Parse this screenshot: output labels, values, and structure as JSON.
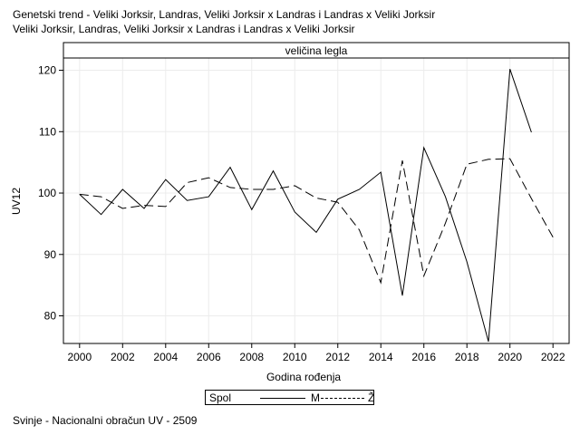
{
  "header": {
    "title_line1": "Genetski trend - Veliki Jorksir, Landras, Veliki Jorksir x Landras i Landras x Veliki Jorksir",
    "title_line2": "Veliki Jorksir, Landras, Veliki Jorksir x Landras i Landras x Veliki Jorksir"
  },
  "legend": {
    "title": "Spol",
    "items": [
      {
        "label": "M",
        "style": "solid"
      },
      {
        "label": "Ž",
        "style": "dashed"
      }
    ]
  },
  "footer": "Svinje - Nacionalni obračun UV - 2509",
  "chart_data": {
    "type": "line",
    "panel_label": "veličina legla",
    "xlabel": "Godina rođenja",
    "ylabel": "UV12",
    "xlim": [
      1999.25,
      2022.75
    ],
    "ylim": [
      75.5,
      122
    ],
    "x_ticks": [
      2000,
      2002,
      2004,
      2006,
      2008,
      2010,
      2012,
      2014,
      2016,
      2018,
      2020,
      2022
    ],
    "y_ticks": [
      80,
      90,
      100,
      110,
      120
    ],
    "grid": true,
    "legend_position": "bottom",
    "series": [
      {
        "name": "M",
        "line_style": "solid",
        "x": [
          2000,
          2001,
          2002,
          2003,
          2004,
          2005,
          2006,
          2007,
          2008,
          2009,
          2010,
          2011,
          2012,
          2013,
          2014,
          2015,
          2016,
          2017,
          2018,
          2019,
          2020,
          2021
        ],
        "values": [
          99.8,
          96.5,
          100.6,
          97.5,
          102.2,
          98.8,
          99.4,
          104.2,
          97.3,
          103.6,
          96.9,
          93.6,
          99.0,
          100.6,
          103.4,
          83.3,
          107.4,
          99.4,
          88.8,
          75.8,
          120.2,
          109.9
        ]
      },
      {
        "name": "Ž",
        "line_style": "dashed",
        "x": [
          2000,
          2001,
          2002,
          2003,
          2004,
          2005,
          2006,
          2007,
          2008,
          2009,
          2010,
          2011,
          2012,
          2013,
          2014,
          2015,
          2016,
          2017,
          2018,
          2019,
          2020,
          2021,
          2022
        ],
        "values": [
          99.8,
          99.4,
          97.5,
          98.0,
          97.8,
          101.7,
          102.5,
          100.9,
          100.6,
          100.6,
          101.2,
          99.2,
          98.5,
          94.0,
          85.4,
          105.3,
          86.5,
          95.1,
          104.7,
          105.5,
          105.6,
          99.1,
          92.8
        ]
      }
    ]
  }
}
